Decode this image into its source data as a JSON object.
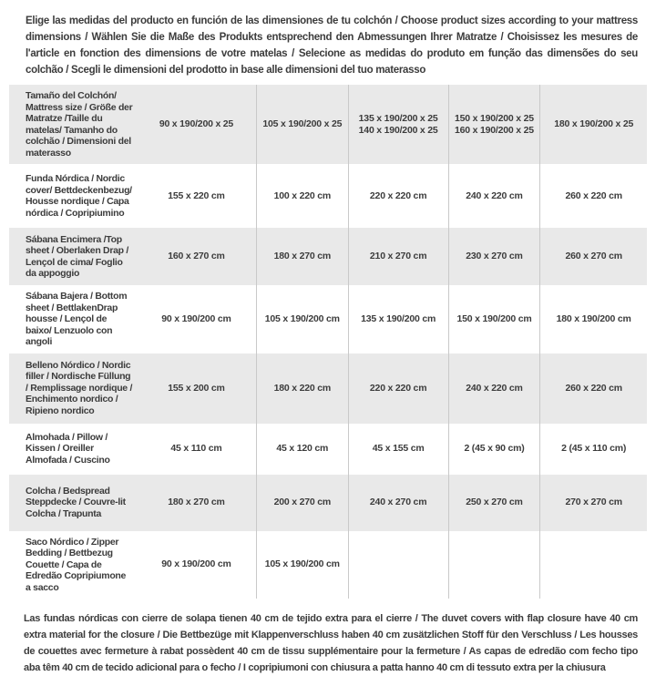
{
  "header": {
    "text": "Elige las medidas del producto en función de las dimensiones de tu colchón / Choose product sizes according to your mattress dimensions / Wählen Sie die Maße des Produkts entsprechend den Abmessungen Ihrer Matratze / Choisissez les mesures de l'article en fonction des dimensions de votre matelas / Selecione as medidas do produto em função das dimensões do seu colchão / Scegli le dimensioni del prodotto in base alle dimensioni del tuo materasso"
  },
  "table": {
    "rows": [
      {
        "label": "Tamaño del Colchón/ Mattress size / Größe der Matratze /Taille du matelas/ Tamanho do colchão / Dimensioni del materasso",
        "values": [
          "90 x 190/200 x 25",
          "105 x 190/200 x 25",
          "135 x 190/200 x 25\n140 x 190/200 x 25",
          "150 x 190/200 x 25\n160 x 190/200 x 25",
          "180 x 190/200 x 25"
        ]
      },
      {
        "label": "Funda Nórdica /  Nordic cover/ Bettdeckenbezug/ Housse nordique  / Capa nórdica / Copripiumino",
        "values": [
          "155 x 220 cm",
          "100 x 220 cm",
          "220 x 220 cm",
          "240 x 220 cm",
          "260 x 220 cm"
        ]
      },
      {
        "label": "Sábana Encimera /Top sheet / Oberlaken Drap / Lençol de cima/ Foglio da appoggio",
        "values": [
          "160 x 270 cm",
          "180 x 270 cm",
          "210 x 270 cm",
          "230 x 270 cm",
          "260 x 270 cm"
        ]
      },
      {
        "label": "Sábana Bajera / Bottom sheet / BettlakenDrap housse / Lençol de baixo/ Lenzuolo con angoli",
        "values": [
          "90 x 190/200 cm",
          "105 x 190/200 cm",
          "135 x 190/200 cm",
          "150 x 190/200 cm",
          "180 x 190/200 cm"
        ]
      },
      {
        "label": "Belleno Nórdico / Nordic filler / Nordische Füllung / Remplissage nordique / Enchimento nordico / Ripieno nordico",
        "values": [
          "155 x 200 cm",
          "180 x 220 cm",
          "220 x 220 cm",
          "240 x 220 cm",
          "260 x 220 cm"
        ]
      },
      {
        "label": "Almohada  / Pillow / Kissen / Oreiller Almofada / Cuscino",
        "values": [
          "45 x 110 cm",
          "45 x 120 cm",
          "45 x 155 cm",
          "2 (45 x 90 cm)",
          "2 (45 x 110 cm)"
        ]
      },
      {
        "label": "Colcha / Bedspread Steppdecke / Couvre-lit Colcha / Trapunta",
        "values": [
          "180 x 270 cm",
          "200 x 270 cm",
          "240 x 270 cm",
          "250 x 270 cm",
          "270 x 270 cm"
        ]
      },
      {
        "label": "Saco Nórdico / Zipper Bedding / Bettbezug Couette  / Capa de Edredão Copripiumone a sacco",
        "values": [
          "90 x 190/200 cm",
          "105 x 190/200 cm",
          "",
          "",
          ""
        ]
      }
    ]
  },
  "footer": {
    "text": "Las fundas nórdicas con cierre de solapa tienen 40 cm de tejido extra para el cierre  /  The duvet covers with flap closure have 40 cm extra material for the closure / Die Bettbezüge mit Klappenverschluss haben 40 cm zusätzlichen Stoff für den Verschluss / Les housses de couettes avec fermeture à rabat possèdent 40 cm de tissu supplémentaire pour la fermeture / As capas de edredão com fecho tipo aba têm 40 cm de tecido adicional para o fecho / I copripiumoni con chiusura a patta hanno 40 cm di tessuto extra per la chiusura"
  },
  "colors": {
    "row_stripe": "#e9e9e9",
    "column_divider": "#c9c9c9",
    "text": "#3c3c3c"
  }
}
